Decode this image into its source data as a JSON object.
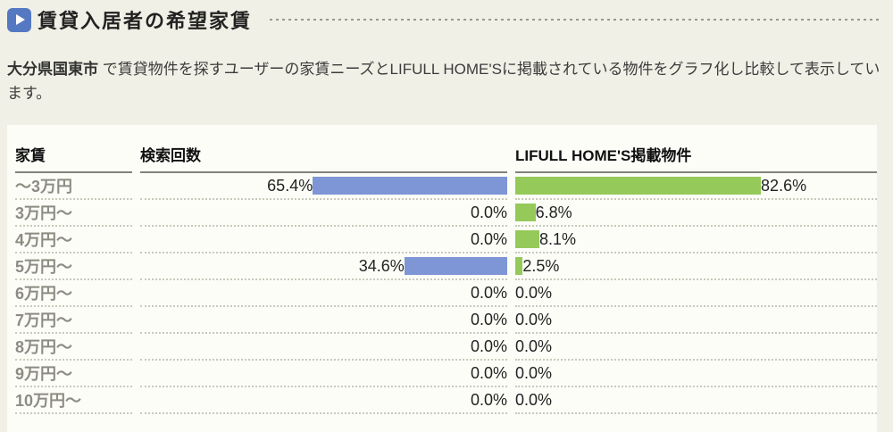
{
  "colors": {
    "page_bg": "#f1f0e6",
    "panel_bg": "#fdfdf8",
    "icon_blue": "#5578c2",
    "search_bar": "#7e95d6",
    "listed_bar": "#95c95a",
    "row_label": "#8c8c82"
  },
  "header": {
    "title": "賃貸入居者の希望家賃",
    "icon": "play-icon"
  },
  "description": {
    "region": "大分県国東市",
    "text": " で賃貸物件を探すユーザーの家賃ニーズとLIFULL HOME'Sに掲載されている物件をグラフ化し比較して表示しています。"
  },
  "table": {
    "headers": [
      "家賃",
      "検索回数",
      "LIFULL HOME'S掲載物件"
    ],
    "rows": [
      {
        "label": "～3万円",
        "search": "65.4%",
        "listed": "82.6%",
        "search_value": 65.4,
        "listed_value": 82.6
      },
      {
        "label": "3万円～",
        "search": "0.0%",
        "listed": "6.8%",
        "search_value": 0.0,
        "listed_value": 6.8
      },
      {
        "label": "4万円～",
        "search": "0.0%",
        "listed": "8.1%",
        "search_value": 0.0,
        "listed_value": 8.1
      },
      {
        "label": "5万円～",
        "search": "34.6%",
        "listed": "2.5%",
        "search_value": 34.6,
        "listed_value": 2.5
      },
      {
        "label": "6万円～",
        "search": "0.0%",
        "listed": "0.0%",
        "search_value": 0.0,
        "listed_value": 0.0
      },
      {
        "label": "7万円～",
        "search": "0.0%",
        "listed": "0.0%",
        "search_value": 0.0,
        "listed_value": 0.0
      },
      {
        "label": "8万円～",
        "search": "0.0%",
        "listed": "0.0%",
        "search_value": 0.0,
        "listed_value": 0.0
      },
      {
        "label": "9万円～",
        "search": "0.0%",
        "listed": "0.0%",
        "search_value": 0.0,
        "listed_value": 0.0
      },
      {
        "label": "10万円～",
        "search": "0.0%",
        "listed": "0.0%",
        "search_value": 0.0,
        "listed_value": 0.0
      }
    ]
  },
  "chart_data": {
    "type": "bar",
    "orientation": "horizontal",
    "title": "賃貸入居者の希望家賃",
    "categories": [
      "～3万円",
      "3万円～",
      "4万円～",
      "5万円～",
      "6万円～",
      "7万円～",
      "8万円～",
      "9万円～",
      "10万円～"
    ],
    "series": [
      {
        "name": "検索回数",
        "color": "#7e95d6",
        "unit": "%",
        "values": [
          65.4,
          0.0,
          0.0,
          34.6,
          0.0,
          0.0,
          0.0,
          0.0,
          0.0
        ]
      },
      {
        "name": "LIFULL HOME'S掲載物件",
        "color": "#95c95a",
        "unit": "%",
        "values": [
          82.6,
          6.8,
          8.1,
          2.5,
          0.0,
          0.0,
          0.0,
          0.0,
          0.0
        ]
      }
    ],
    "value_range": [
      0,
      100
    ],
    "value_labels_shown": true,
    "grid": false,
    "legend_position": "column-headers"
  }
}
